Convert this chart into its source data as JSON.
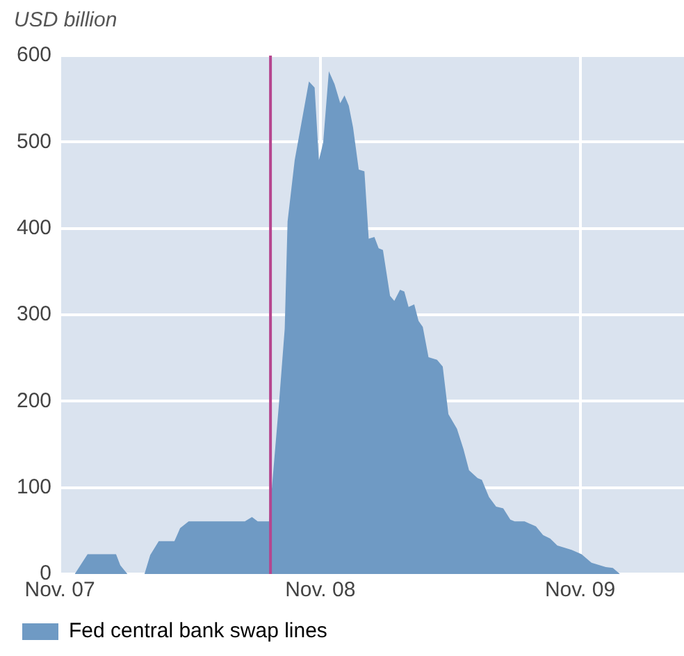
{
  "chart_data": {
    "type": "area",
    "ylabel": "USD billion",
    "x": [
      "2007-11-22",
      "2007-12-10",
      "2008-01-19",
      "2008-01-25",
      "2008-02-04",
      "2008-02-28",
      "2008-03-07",
      "2008-03-19",
      "2008-04-10",
      "2008-04-18",
      "2008-04-30",
      "2008-07-18",
      "2008-07-28",
      "2008-08-05",
      "2008-08-21",
      "2008-09-04",
      "2008-09-12",
      "2008-09-16",
      "2008-09-26",
      "2008-10-16",
      "2008-10-24",
      "2008-10-30",
      "2008-11-05",
      "2008-11-13",
      "2008-11-21",
      "2008-11-29",
      "2008-12-05",
      "2008-12-11",
      "2008-12-17",
      "2008-12-25",
      "2009-01-02",
      "2009-01-08",
      "2009-01-16",
      "2009-01-22",
      "2009-01-28",
      "2009-02-07",
      "2009-02-13",
      "2009-02-21",
      "2009-02-27",
      "2009-03-05",
      "2009-03-13",
      "2009-03-19",
      "2009-03-25",
      "2009-04-02",
      "2009-04-14",
      "2009-04-22",
      "2009-04-30",
      "2009-05-12",
      "2009-05-21",
      "2009-05-29",
      "2009-06-10",
      "2009-06-16",
      "2009-06-26",
      "2009-07-06",
      "2009-07-16",
      "2009-07-26",
      "2009-08-01",
      "2009-08-15",
      "2009-08-31",
      "2009-09-10",
      "2009-09-20",
      "2009-09-30",
      "2009-10-20",
      "2009-11-03",
      "2009-11-17",
      "2009-12-07",
      "2009-12-17",
      "2009-12-27"
    ],
    "series": [
      {
        "name": "Fed central bank swap lines",
        "color": "#6f9ac4",
        "values": [
          0,
          23,
          23,
          10,
          0,
          0,
          22,
          38,
          38,
          53,
          61,
          61,
          66,
          61,
          61,
          198,
          284,
          408,
          479,
          570,
          563,
          479,
          499,
          582,
          567,
          545,
          554,
          542,
          517,
          468,
          466,
          388,
          390,
          377,
          375,
          322,
          316,
          329,
          327,
          309,
          312,
          293,
          286,
          251,
          248,
          240,
          185,
          168,
          145,
          120,
          111,
          109,
          89,
          78,
          76,
          63,
          61,
          61,
          55,
          45,
          41,
          33,
          28,
          23,
          13,
          8,
          7,
          0
        ]
      }
    ],
    "xlim": [
      "2007-11-01",
      "2010-03-27"
    ],
    "xticks": [
      {
        "value": "2007-11-01",
        "label": "Nov. 07"
      },
      {
        "value": "2008-11-01",
        "label": "Nov. 08"
      },
      {
        "value": "2009-11-01",
        "label": "Nov. 09"
      }
    ],
    "ylim": [
      0,
      600
    ],
    "yticks": [
      0,
      100,
      200,
      300,
      400,
      500,
      600
    ],
    "ref_lines": [
      {
        "axis": "x",
        "value": "2008-08-23",
        "color": "#b5468f"
      }
    ],
    "grid": true,
    "legend": "bottom left"
  }
}
